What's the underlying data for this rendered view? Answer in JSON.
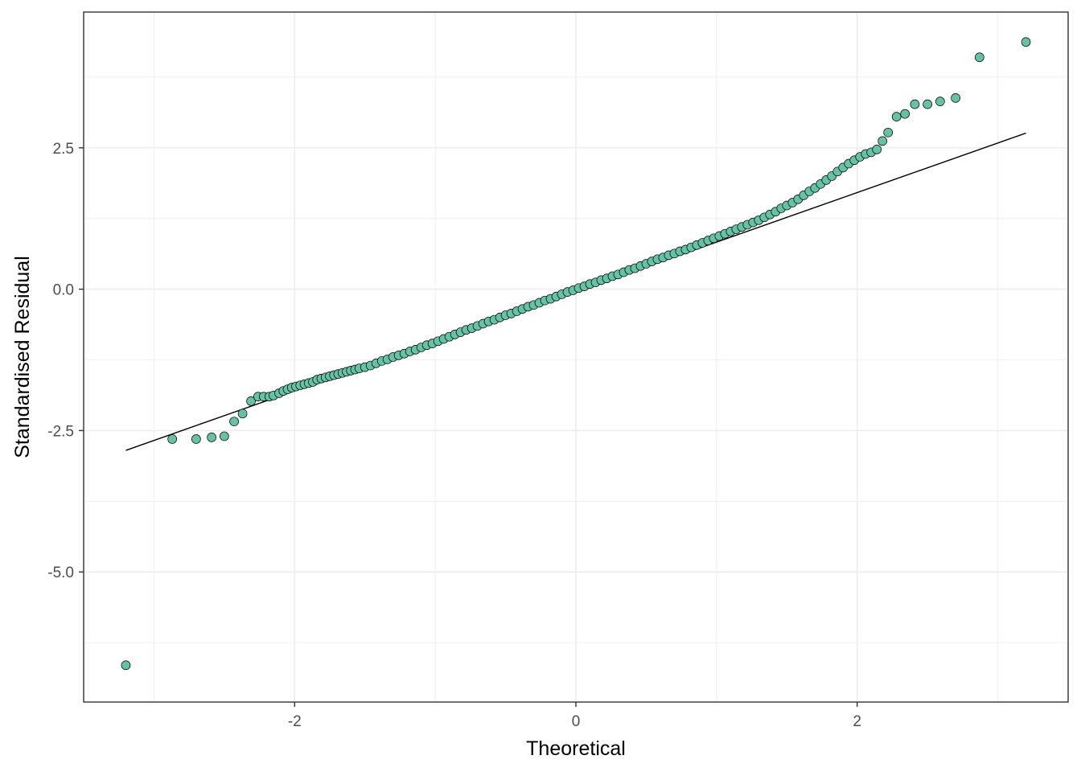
{
  "chart_data": {
    "type": "scatter",
    "subtype": "qq-plot",
    "title": "",
    "xlabel": "Theoretical",
    "ylabel": "Standardised Residual",
    "xlim": [
      -3.5,
      3.5
    ],
    "ylim": [
      -7.3,
      4.9
    ],
    "x_ticks": [
      -2,
      0,
      2
    ],
    "x_tick_labels": [
      "-2",
      "0",
      "2"
    ],
    "y_ticks": [
      -5.0,
      -2.5,
      0.0,
      2.5
    ],
    "y_tick_labels": [
      "-5.0",
      "-2.5",
      "0.0",
      "2.5"
    ],
    "grid": true,
    "legend": "none",
    "colors": {
      "point_fill": "#66c2a5",
      "point_stroke": "#000000",
      "line": "#000000",
      "grid": "#ebebeb",
      "panel_border": "#333333"
    },
    "reference_line": {
      "x": [
        -3.2,
        3.2
      ],
      "y": [
        -2.85,
        2.76
      ]
    },
    "series": [
      {
        "points": [
          [
            -3.2,
            -6.65
          ],
          [
            -2.87,
            -2.65
          ],
          [
            -2.7,
            -2.65
          ],
          [
            -2.59,
            -2.62
          ],
          [
            -2.5,
            -2.6
          ],
          [
            -2.43,
            -2.34
          ],
          [
            -2.37,
            -2.2
          ],
          [
            -2.31,
            -1.98
          ],
          [
            -2.26,
            -1.9
          ],
          [
            -2.22,
            -1.9
          ],
          [
            -2.18,
            -1.9
          ],
          [
            -2.15,
            -1.88
          ],
          [
            -2.11,
            -1.84
          ],
          [
            -2.08,
            -1.8
          ],
          [
            -2.05,
            -1.77
          ],
          [
            -2.02,
            -1.74
          ],
          [
            -1.99,
            -1.72
          ],
          [
            -1.96,
            -1.7
          ],
          [
            -1.93,
            -1.68
          ],
          [
            -1.9,
            -1.66
          ],
          [
            -1.87,
            -1.64
          ],
          [
            -1.84,
            -1.6
          ],
          [
            -1.81,
            -1.58
          ],
          [
            -1.78,
            -1.56
          ],
          [
            -1.75,
            -1.54
          ],
          [
            -1.72,
            -1.52
          ],
          [
            -1.69,
            -1.5
          ],
          [
            -1.66,
            -1.48
          ],
          [
            -1.63,
            -1.46
          ],
          [
            -1.6,
            -1.44
          ],
          [
            -1.57,
            -1.42
          ],
          [
            -1.54,
            -1.4
          ],
          [
            -1.5,
            -1.38
          ],
          [
            -1.46,
            -1.35
          ],
          [
            -1.42,
            -1.31
          ],
          [
            -1.38,
            -1.27
          ],
          [
            -1.34,
            -1.24
          ],
          [
            -1.3,
            -1.2
          ],
          [
            -1.26,
            -1.17
          ],
          [
            -1.22,
            -1.14
          ],
          [
            -1.18,
            -1.1
          ],
          [
            -1.14,
            -1.07
          ],
          [
            -1.1,
            -1.03
          ],
          [
            -1.06,
            -0.99
          ],
          [
            -1.02,
            -0.96
          ],
          [
            -0.98,
            -0.92
          ],
          [
            -0.94,
            -0.88
          ],
          [
            -0.9,
            -0.84
          ],
          [
            -0.86,
            -0.8
          ],
          [
            -0.82,
            -0.76
          ],
          [
            -0.78,
            -0.72
          ],
          [
            -0.74,
            -0.69
          ],
          [
            -0.7,
            -0.65
          ],
          [
            -0.66,
            -0.61
          ],
          [
            -0.62,
            -0.57
          ],
          [
            -0.58,
            -0.54
          ],
          [
            -0.54,
            -0.5
          ],
          [
            -0.5,
            -0.46
          ],
          [
            -0.46,
            -0.43
          ],
          [
            -0.42,
            -0.39
          ],
          [
            -0.38,
            -0.35
          ],
          [
            -0.34,
            -0.31
          ],
          [
            -0.3,
            -0.28
          ],
          [
            -0.26,
            -0.24
          ],
          [
            -0.22,
            -0.2
          ],
          [
            -0.18,
            -0.17
          ],
          [
            -0.14,
            -0.13
          ],
          [
            -0.1,
            -0.09
          ],
          [
            -0.06,
            -0.05
          ],
          [
            -0.02,
            -0.02
          ],
          [
            0.02,
            0.02
          ],
          [
            0.06,
            0.05
          ],
          [
            0.1,
            0.09
          ],
          [
            0.14,
            0.12
          ],
          [
            0.18,
            0.16
          ],
          [
            0.22,
            0.19
          ],
          [
            0.26,
            0.23
          ],
          [
            0.3,
            0.26
          ],
          [
            0.34,
            0.3
          ],
          [
            0.38,
            0.34
          ],
          [
            0.42,
            0.37
          ],
          [
            0.46,
            0.41
          ],
          [
            0.5,
            0.45
          ],
          [
            0.54,
            0.49
          ],
          [
            0.58,
            0.53
          ],
          [
            0.62,
            0.56
          ],
          [
            0.66,
            0.6
          ],
          [
            0.7,
            0.63
          ],
          [
            0.74,
            0.67
          ],
          [
            0.78,
            0.7
          ],
          [
            0.82,
            0.74
          ],
          [
            0.86,
            0.78
          ],
          [
            0.9,
            0.82
          ],
          [
            0.94,
            0.86
          ],
          [
            0.98,
            0.9
          ],
          [
            1.02,
            0.94
          ],
          [
            1.06,
            0.98
          ],
          [
            1.1,
            1.02
          ],
          [
            1.14,
            1.06
          ],
          [
            1.18,
            1.1
          ],
          [
            1.22,
            1.14
          ],
          [
            1.26,
            1.18
          ],
          [
            1.3,
            1.22
          ],
          [
            1.34,
            1.27
          ],
          [
            1.38,
            1.32
          ],
          [
            1.42,
            1.37
          ],
          [
            1.46,
            1.43
          ],
          [
            1.5,
            1.48
          ],
          [
            1.54,
            1.53
          ],
          [
            1.58,
            1.59
          ],
          [
            1.62,
            1.66
          ],
          [
            1.66,
            1.73
          ],
          [
            1.7,
            1.79
          ],
          [
            1.74,
            1.86
          ],
          [
            1.78,
            1.93
          ],
          [
            1.82,
            2.0
          ],
          [
            1.86,
            2.08
          ],
          [
            1.9,
            2.15
          ],
          [
            1.94,
            2.22
          ],
          [
            1.98,
            2.28
          ],
          [
            2.02,
            2.34
          ],
          [
            2.06,
            2.39
          ],
          [
            2.1,
            2.42
          ],
          [
            2.14,
            2.47
          ],
          [
            2.18,
            2.62
          ],
          [
            2.22,
            2.77
          ],
          [
            2.28,
            3.05
          ],
          [
            2.34,
            3.1
          ],
          [
            2.41,
            3.27
          ],
          [
            2.5,
            3.27
          ],
          [
            2.59,
            3.32
          ],
          [
            2.7,
            3.38
          ],
          [
            2.87,
            4.1
          ],
          [
            3.2,
            4.37
          ]
        ]
      }
    ]
  }
}
